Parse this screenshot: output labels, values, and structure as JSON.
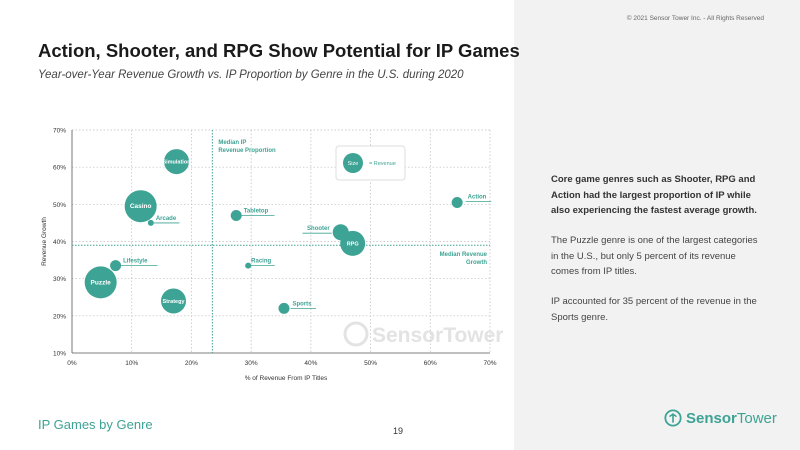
{
  "header": {
    "title": "Action, Shooter, and RPG Show Potential for IP Games",
    "subtitle": "Year-over-Year Revenue Growth vs. IP Proportion by Genre in the U.S. during 2020",
    "copyright": "© 2021 Sensor Tower Inc. - All Rights Reserved"
  },
  "sidebar": {
    "paragraph1": "Core game genres such as Shooter, RPG and Action had the largest proportion of IP while also experiencing the fastest average growth.",
    "paragraph2": "The Puzzle genre is one of the largest categories in the U.S., but only 5 percent of its revenue comes from IP titles.",
    "paragraph3": "IP accounted for 35 percent of the revenue in the Sports genre."
  },
  "footer": {
    "section_label": "IP Games by Genre",
    "page_number": "19",
    "logo_text_bold": "Sensor",
    "logo_text_regular": "Tower"
  },
  "colors": {
    "bubble": "#3da394",
    "accent": "#3da394",
    "sidebar_bg": "#f2f2f2"
  },
  "chart_data": {
    "type": "scatter",
    "xlabel": "% of Revenue From IP Titles",
    "ylabel": "Revenue Growth",
    "xlim": [
      0,
      70
    ],
    "ylim": [
      10,
      70
    ],
    "xticks": [
      "0%",
      "10%",
      "20%",
      "30%",
      "40%",
      "50%",
      "60%",
      "70%"
    ],
    "yticks": [
      "10%",
      "20%",
      "30%",
      "40%",
      "50%",
      "60%",
      "70%"
    ],
    "grid": true,
    "median_x": 23.5,
    "median_x_label": [
      "Median IP",
      "Revenue Proportion"
    ],
    "median_y": 39,
    "median_y_label": [
      "Median Revenue",
      "Growth"
    ],
    "legend": {
      "bubble_label": "Size",
      "text": "= Revenue"
    },
    "watermark": "SensorTower",
    "points": [
      {
        "genre": "Simulation",
        "x": 17.5,
        "y": 61.5,
        "size": "large"
      },
      {
        "genre": "Casino",
        "x": 11.5,
        "y": 49.5,
        "size": "xlarge"
      },
      {
        "genre": "Arcade",
        "x": 13.2,
        "y": 45,
        "size": "tiny"
      },
      {
        "genre": "Tabletop",
        "x": 27.5,
        "y": 47,
        "size": "small"
      },
      {
        "genre": "Action",
        "x": 64.5,
        "y": 50.5,
        "size": "small"
      },
      {
        "genre": "Shooter",
        "x": 45,
        "y": 42.5,
        "size": "medium"
      },
      {
        "genre": "RPG",
        "x": 47,
        "y": 39.5,
        "size": "large"
      },
      {
        "genre": "Lifestyle",
        "x": 7.3,
        "y": 33.5,
        "size": "small"
      },
      {
        "genre": "Racing",
        "x": 29.5,
        "y": 33.5,
        "size": "tiny"
      },
      {
        "genre": "Puzzle",
        "x": 4.8,
        "y": 29,
        "size": "xlarge"
      },
      {
        "genre": "Strategy",
        "x": 17,
        "y": 24,
        "size": "large"
      },
      {
        "genre": "Sports",
        "x": 35.5,
        "y": 22,
        "size": "small"
      }
    ]
  }
}
